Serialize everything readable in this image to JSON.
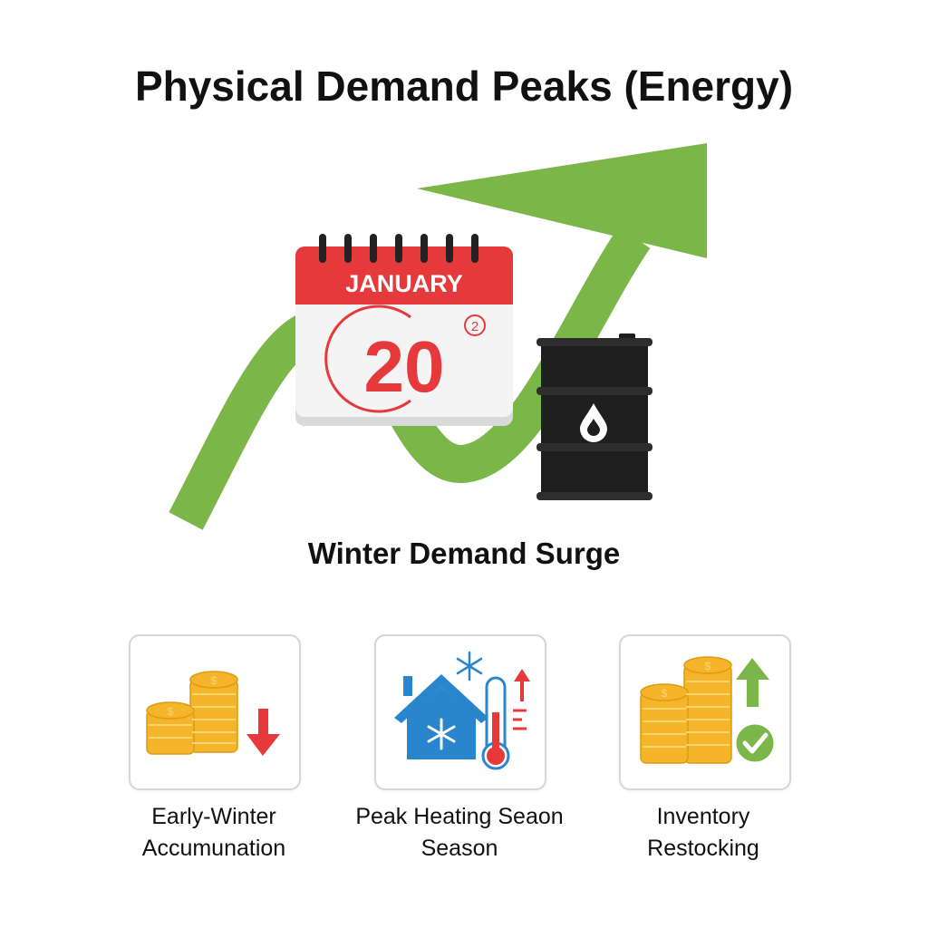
{
  "title": "Physical Demand Peaks (Energy)",
  "hero": {
    "calendar_month": "JANUARY",
    "calendar_day": "20",
    "calendar_superscript": "2",
    "subtitle": "Winter Demand Surge"
  },
  "cards": [
    {
      "line1": "Early-Winter",
      "line2": "Accumunation",
      "icon": "coins-down-arrow-icon"
    },
    {
      "line1": "Peak Heating Seaon",
      "line2": "Season",
      "icon": "house-snowflake-thermometer-icon"
    },
    {
      "line1": "Inventory",
      "line2": "Restocking",
      "icon": "coins-up-arrow-check-icon"
    }
  ],
  "colors": {
    "green": "#7ab648",
    "red": "#e5393b",
    "gold": "#f5b52a",
    "blue": "#2a86cc",
    "barrel": "#1e1e1e"
  }
}
